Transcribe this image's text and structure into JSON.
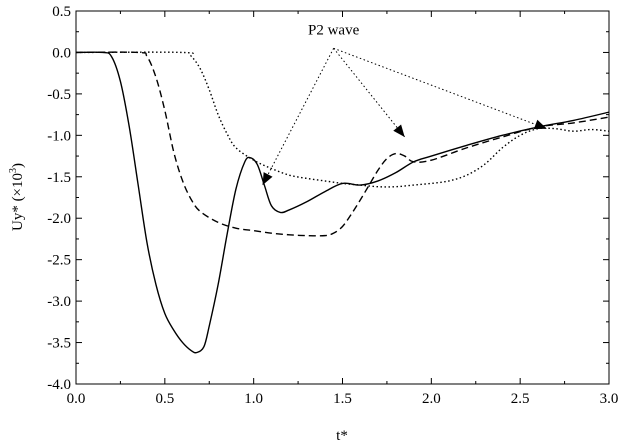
{
  "chart_data": {
    "type": "line",
    "xlabel": "t*",
    "ylabel_main": "Uy* (×10",
    "ylabel_sup": "3",
    "ylabel_end": ")",
    "xlim": [
      0.0,
      3.0
    ],
    "ylim": [
      -4.0,
      0.5
    ],
    "x_ticks": [
      "0.0",
      "0.5",
      "1.0",
      "1.5",
      "2.0",
      "2.5",
      "3.0"
    ],
    "y_ticks": [
      "0.5",
      "0.0",
      "-0.5",
      "-1.0",
      "-1.5",
      "-2.0",
      "-2.5",
      "-3.0",
      "-3.5",
      "-4.0"
    ],
    "annotation": {
      "text": "P2 wave",
      "origin": [
        1.45,
        0.05
      ],
      "targets": [
        [
          1.05,
          -1.6
        ],
        [
          1.85,
          -1.02
        ],
        [
          2.65,
          -0.92
        ]
      ]
    },
    "series": [
      {
        "style": "solid",
        "points": [
          [
            0.0,
            0.0
          ],
          [
            0.15,
            0.0
          ],
          [
            0.2,
            -0.05
          ],
          [
            0.25,
            -0.35
          ],
          [
            0.3,
            -0.9
          ],
          [
            0.35,
            -1.6
          ],
          [
            0.4,
            -2.3
          ],
          [
            0.45,
            -2.8
          ],
          [
            0.5,
            -3.15
          ],
          [
            0.55,
            -3.35
          ],
          [
            0.6,
            -3.5
          ],
          [
            0.65,
            -3.6
          ],
          [
            0.68,
            -3.62
          ],
          [
            0.72,
            -3.55
          ],
          [
            0.75,
            -3.3
          ],
          [
            0.8,
            -2.8
          ],
          [
            0.85,
            -2.2
          ],
          [
            0.9,
            -1.65
          ],
          [
            0.95,
            -1.32
          ],
          [
            0.98,
            -1.27
          ],
          [
            1.02,
            -1.35
          ],
          [
            1.06,
            -1.6
          ],
          [
            1.1,
            -1.85
          ],
          [
            1.15,
            -1.93
          ],
          [
            1.2,
            -1.9
          ],
          [
            1.3,
            -1.8
          ],
          [
            1.4,
            -1.68
          ],
          [
            1.5,
            -1.58
          ],
          [
            1.6,
            -1.6
          ],
          [
            1.7,
            -1.55
          ],
          [
            1.8,
            -1.45
          ],
          [
            1.9,
            -1.32
          ],
          [
            2.0,
            -1.25
          ],
          [
            2.2,
            -1.12
          ],
          [
            2.4,
            -1.0
          ],
          [
            2.6,
            -0.9
          ],
          [
            2.8,
            -0.82
          ],
          [
            3.0,
            -0.72
          ]
        ]
      },
      {
        "style": "dashed",
        "points": [
          [
            0.0,
            0.0
          ],
          [
            0.35,
            0.0
          ],
          [
            0.4,
            -0.05
          ],
          [
            0.45,
            -0.3
          ],
          [
            0.5,
            -0.7
          ],
          [
            0.55,
            -1.2
          ],
          [
            0.6,
            -1.55
          ],
          [
            0.65,
            -1.78
          ],
          [
            0.7,
            -1.92
          ],
          [
            0.8,
            -2.05
          ],
          [
            0.9,
            -2.12
          ],
          [
            1.0,
            -2.15
          ],
          [
            1.1,
            -2.18
          ],
          [
            1.2,
            -2.2
          ],
          [
            1.3,
            -2.21
          ],
          [
            1.4,
            -2.21
          ],
          [
            1.45,
            -2.18
          ],
          [
            1.5,
            -2.1
          ],
          [
            1.55,
            -1.95
          ],
          [
            1.6,
            -1.78
          ],
          [
            1.65,
            -1.6
          ],
          [
            1.7,
            -1.42
          ],
          [
            1.75,
            -1.28
          ],
          [
            1.8,
            -1.22
          ],
          [
            1.85,
            -1.25
          ],
          [
            1.9,
            -1.32
          ],
          [
            2.0,
            -1.3
          ],
          [
            2.2,
            -1.15
          ],
          [
            2.4,
            -1.02
          ],
          [
            2.6,
            -0.9
          ],
          [
            2.8,
            -0.85
          ],
          [
            3.0,
            -0.78
          ]
        ]
      },
      {
        "style": "dotted",
        "points": [
          [
            0.0,
            0.0
          ],
          [
            0.6,
            0.0
          ],
          [
            0.65,
            -0.05
          ],
          [
            0.7,
            -0.2
          ],
          [
            0.75,
            -0.45
          ],
          [
            0.8,
            -0.75
          ],
          [
            0.85,
            -0.98
          ],
          [
            0.9,
            -1.15
          ],
          [
            1.0,
            -1.3
          ],
          [
            1.1,
            -1.4
          ],
          [
            1.2,
            -1.48
          ],
          [
            1.3,
            -1.52
          ],
          [
            1.4,
            -1.55
          ],
          [
            1.5,
            -1.58
          ],
          [
            1.6,
            -1.6
          ],
          [
            1.7,
            -1.62
          ],
          [
            1.8,
            -1.62
          ],
          [
            1.9,
            -1.6
          ],
          [
            2.0,
            -1.58
          ],
          [
            2.1,
            -1.55
          ],
          [
            2.2,
            -1.48
          ],
          [
            2.3,
            -1.35
          ],
          [
            2.4,
            -1.15
          ],
          [
            2.5,
            -1.0
          ],
          [
            2.6,
            -0.92
          ],
          [
            2.7,
            -0.92
          ],
          [
            2.8,
            -0.95
          ],
          [
            2.9,
            -0.93
          ],
          [
            3.0,
            -0.95
          ]
        ]
      }
    ]
  }
}
